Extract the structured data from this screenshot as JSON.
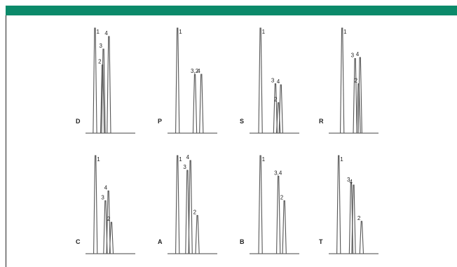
{
  "header": {
    "color": "#0b8a6a"
  },
  "chart_data": {
    "type": "line",
    "title": "",
    "panels": [
      {
        "panel_label": "D",
        "peaks": [
          {
            "label": "1",
            "x": 0.19,
            "height": 1.0
          },
          {
            "label": "3",
            "x": 0.36,
            "height": 0.8
          },
          {
            "label": "2",
            "x": 0.34,
            "height": 0.65
          },
          {
            "label": "4",
            "x": 0.47,
            "height": 0.92
          }
        ]
      },
      {
        "panel_label": "P",
        "peaks": [
          {
            "label": "1",
            "x": 0.2,
            "height": 1.0
          },
          {
            "label": "3,2",
            "x": 0.55,
            "height": 0.56
          },
          {
            "label": "4",
            "x": 0.68,
            "height": 0.56
          }
        ]
      },
      {
        "panel_label": "S",
        "peaks": [
          {
            "label": "1",
            "x": 0.22,
            "height": 1.0
          },
          {
            "label": "3",
            "x": 0.52,
            "height": 0.47
          },
          {
            "label": "2",
            "x": 0.58,
            "height": 0.29
          },
          {
            "label": "4",
            "x": 0.63,
            "height": 0.46
          }
        ]
      },
      {
        "panel_label": "R",
        "peaks": [
          {
            "label": "1",
            "x": 0.27,
            "height": 1.0
          },
          {
            "label": "3",
            "x": 0.53,
            "height": 0.71
          },
          {
            "label": "2",
            "x": 0.6,
            "height": 0.47
          },
          {
            "label": "4",
            "x": 0.63,
            "height": 0.72
          }
        ]
      },
      {
        "panel_label": "C",
        "peaks": [
          {
            "label": "1",
            "x": 0.2,
            "height": 1.0
          },
          {
            "label": "3",
            "x": 0.4,
            "height": 0.54
          },
          {
            "label": "4",
            "x": 0.46,
            "height": 0.64
          },
          {
            "label": "2",
            "x": 0.52,
            "height": 0.32
          }
        ]
      },
      {
        "panel_label": "A",
        "peaks": [
          {
            "label": "1",
            "x": 0.2,
            "height": 1.0
          },
          {
            "label": "3",
            "x": 0.4,
            "height": 0.85
          },
          {
            "label": "4",
            "x": 0.46,
            "height": 0.95
          },
          {
            "label": "2",
            "x": 0.6,
            "height": 0.39
          }
        ]
      },
      {
        "panel_label": "B",
        "peaks": [
          {
            "label": "1",
            "x": 0.22,
            "height": 1.0
          },
          {
            "label": "3,4",
            "x": 0.58,
            "height": 0.79
          },
          {
            "label": "2",
            "x": 0.7,
            "height": 0.54
          }
        ]
      },
      {
        "panel_label": "T",
        "peaks": [
          {
            "label": "1",
            "x": 0.2,
            "height": 1.0
          },
          {
            "label": "3",
            "x": 0.45,
            "height": 0.72
          },
          {
            "label": "4",
            "x": 0.5,
            "height": 0.7
          },
          {
            "label": "2",
            "x": 0.66,
            "height": 0.33
          }
        ]
      }
    ]
  }
}
